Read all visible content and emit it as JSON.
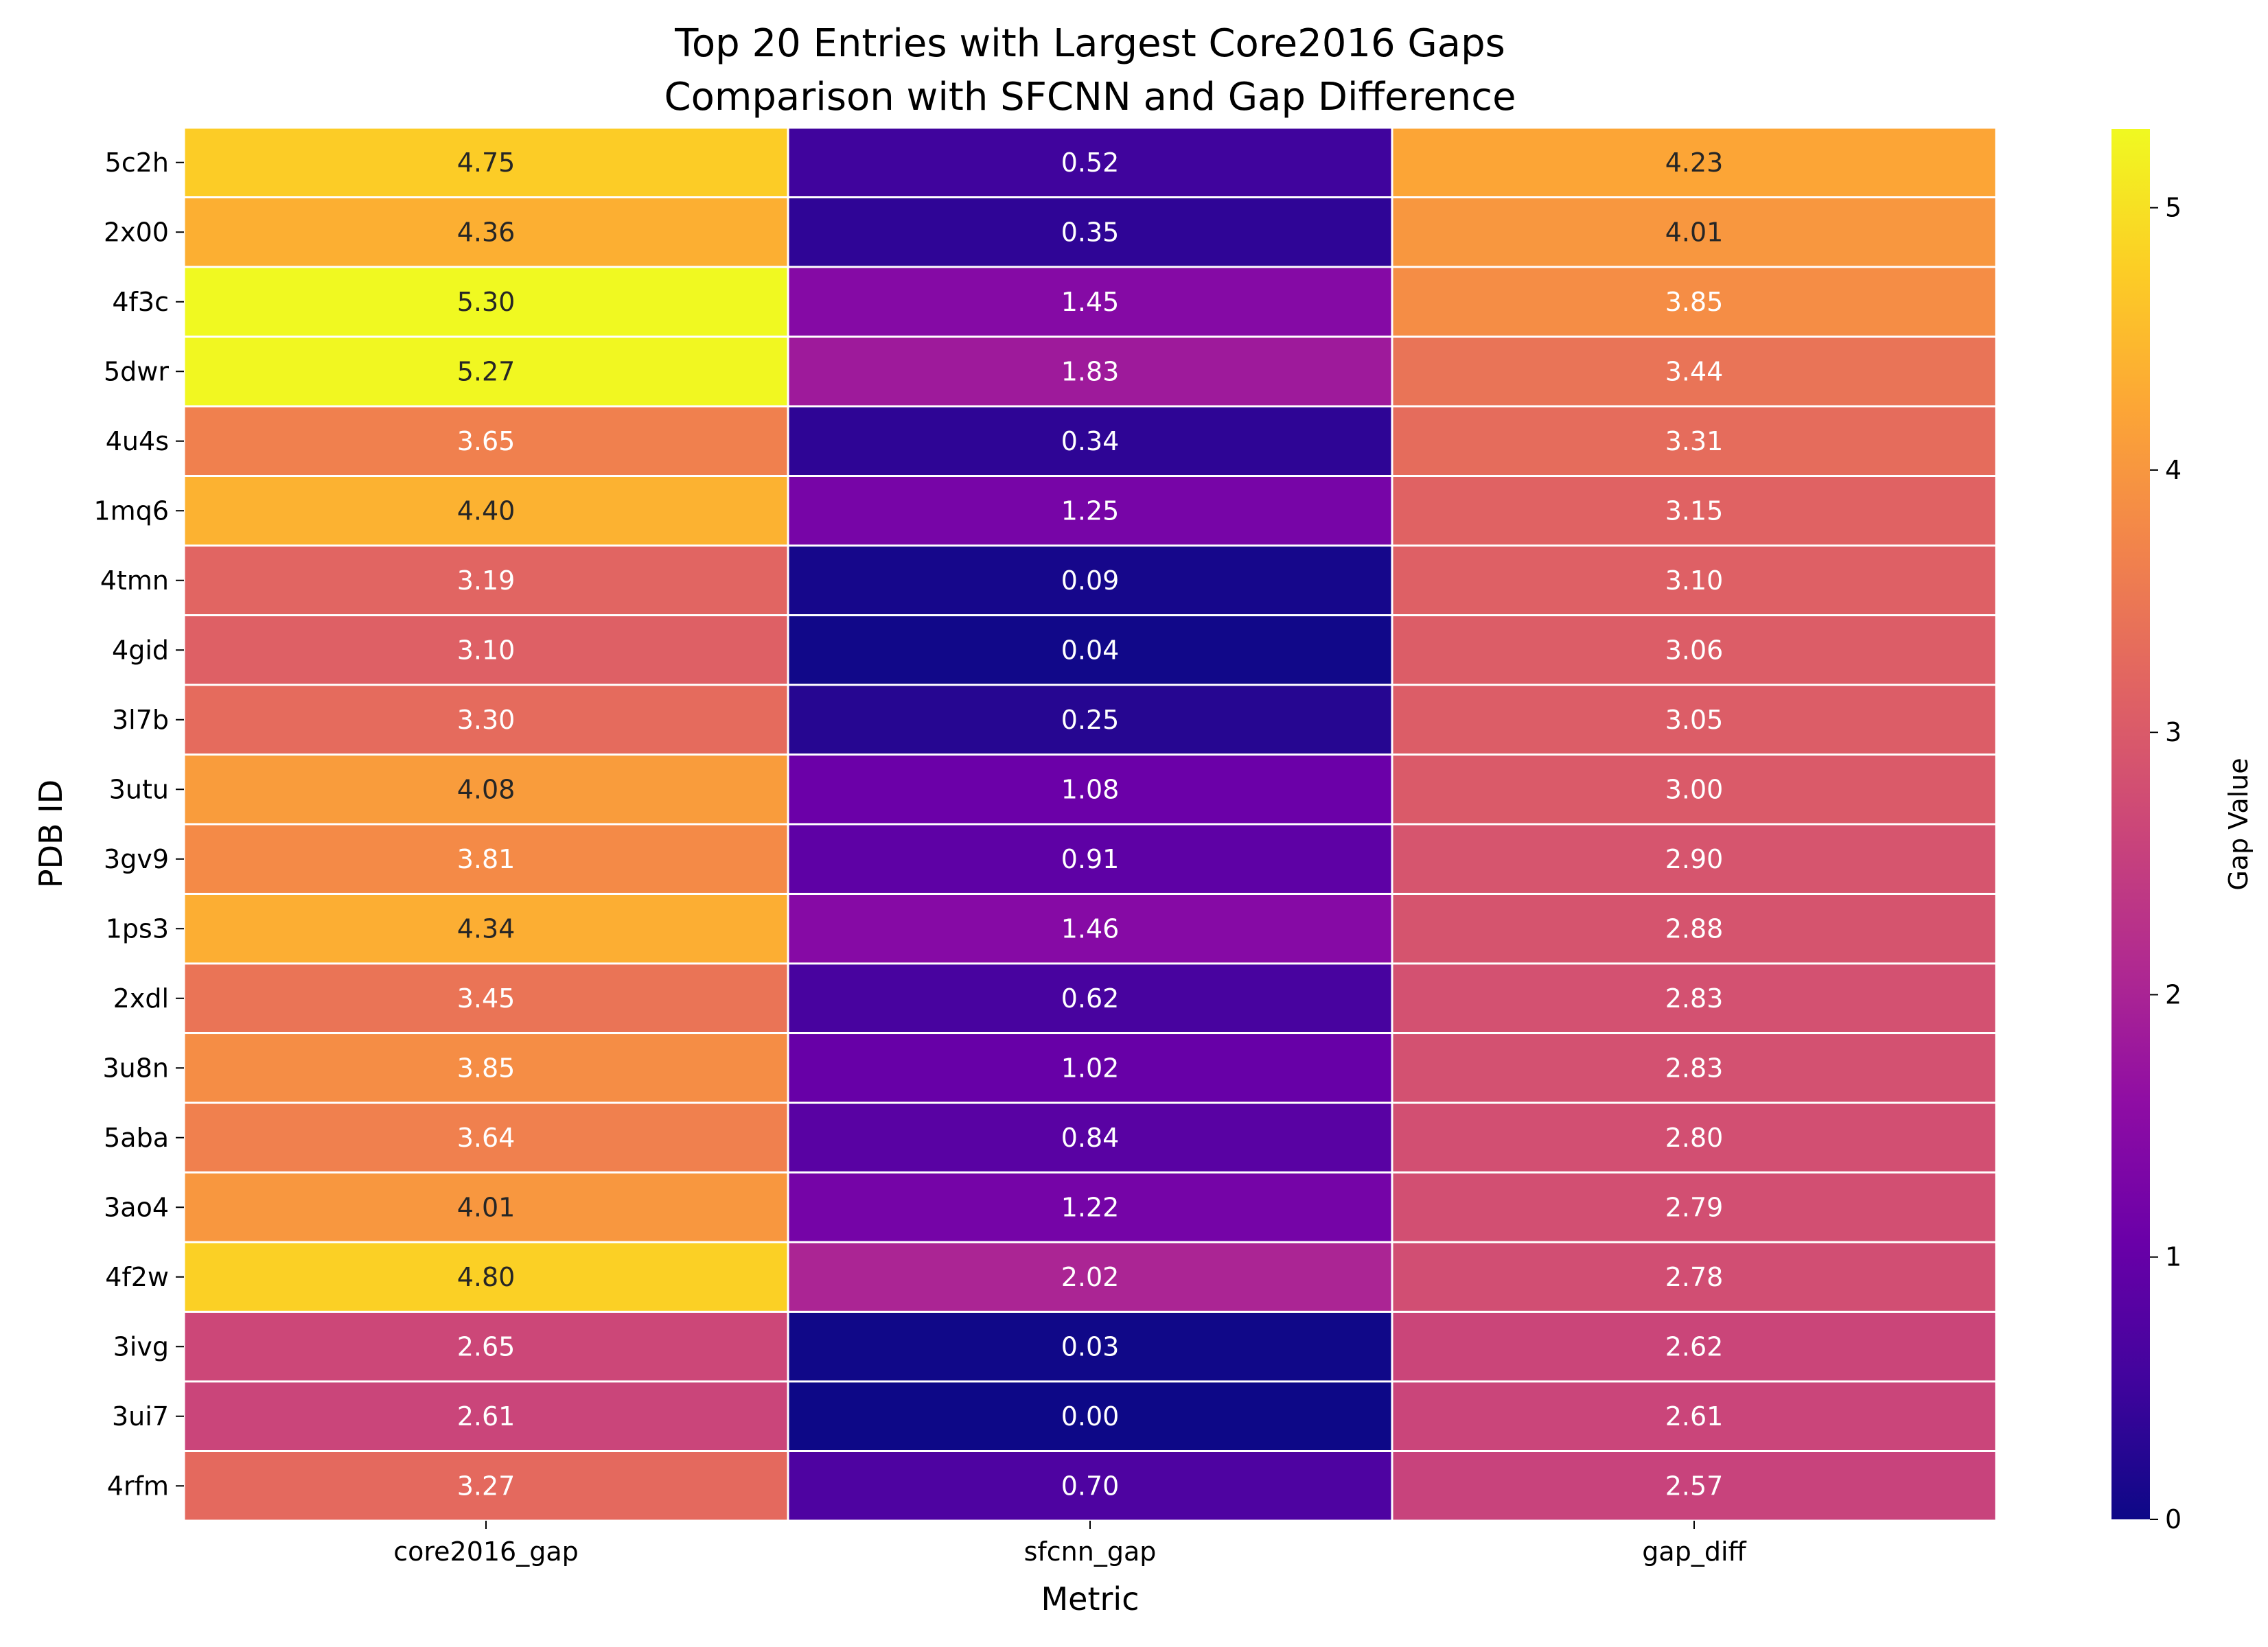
{
  "chart_data": {
    "type": "heatmap",
    "title": [
      "Top 20 Entries with Largest Core2016 Gaps",
      "Comparison with SFCNN and Gap Difference"
    ],
    "xlabel": "Metric",
    "ylabel": "PDB ID",
    "columns": [
      "core2016_gap",
      "sfcnn_gap",
      "gap_diff"
    ],
    "rows": [
      "5c2h",
      "2x00",
      "4f3c",
      "5dwr",
      "4u4s",
      "1mq6",
      "4tmn",
      "4gid",
      "3l7b",
      "3utu",
      "3gv9",
      "1ps3",
      "2xdl",
      "3u8n",
      "5aba",
      "3ao4",
      "4f2w",
      "3ivg",
      "3ui7",
      "4rfm"
    ],
    "values": [
      [
        4.75,
        0.52,
        4.23
      ],
      [
        4.36,
        0.35,
        4.01
      ],
      [
        5.3,
        1.45,
        3.85
      ],
      [
        5.27,
        1.83,
        3.44
      ],
      [
        3.65,
        0.34,
        3.31
      ],
      [
        4.4,
        1.25,
        3.15
      ],
      [
        3.19,
        0.09,
        3.1
      ],
      [
        3.1,
        0.04,
        3.06
      ],
      [
        3.3,
        0.25,
        3.05
      ],
      [
        4.08,
        1.08,
        3.0
      ],
      [
        3.81,
        0.91,
        2.9
      ],
      [
        4.34,
        1.46,
        2.88
      ],
      [
        3.45,
        0.62,
        2.83
      ],
      [
        3.85,
        1.02,
        2.83
      ],
      [
        3.64,
        0.84,
        2.8
      ],
      [
        4.01,
        1.22,
        2.79
      ],
      [
        4.8,
        2.02,
        2.78
      ],
      [
        2.65,
        0.03,
        2.62
      ],
      [
        2.61,
        0.0,
        2.61
      ],
      [
        3.27,
        0.7,
        2.57
      ]
    ],
    "colormap": "plasma",
    "colorbar": {
      "label": "Gap Value",
      "range": [
        0,
        5.3
      ],
      "ticks": [
        0,
        1,
        2,
        3,
        4,
        5
      ]
    },
    "annotation_colors": {
      "dark": "#262626",
      "light": "#ffffff"
    }
  }
}
